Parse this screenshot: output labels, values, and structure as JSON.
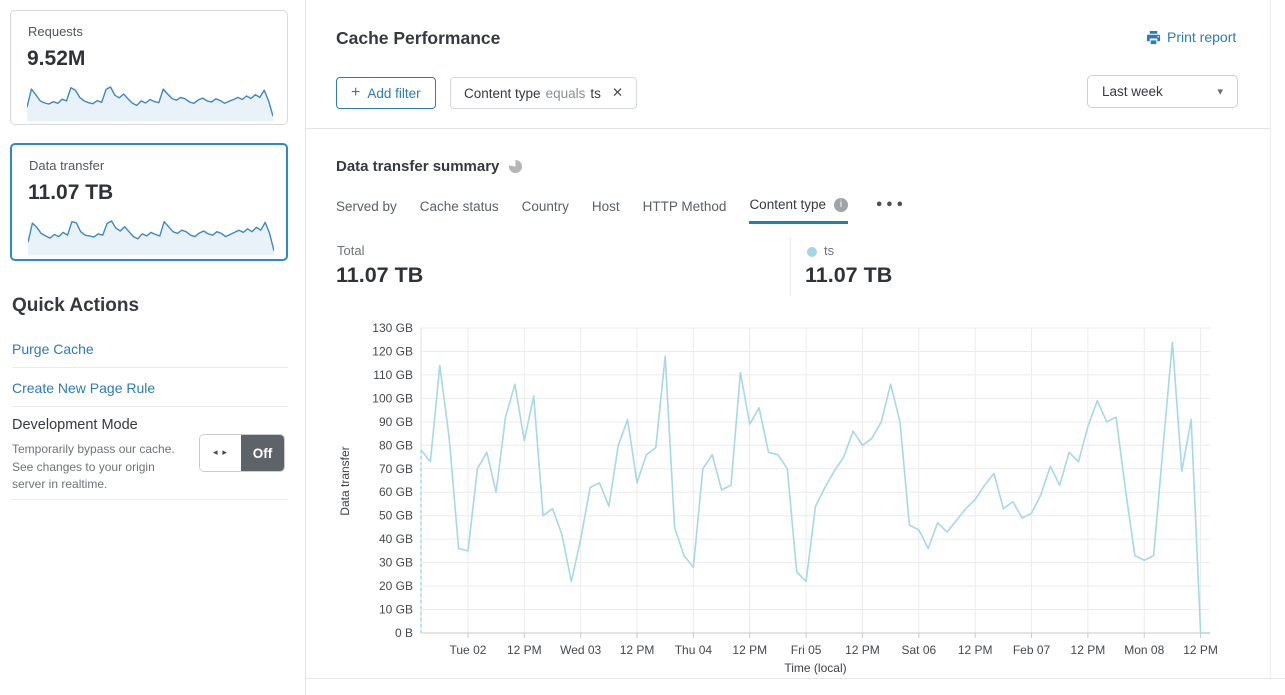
{
  "icons": {
    "plus": "+",
    "close": "✕",
    "caret": "▾",
    "more": "•••",
    "info": "i",
    "dev_arrows": "◂ ▸"
  },
  "sidebar": {
    "cards": [
      {
        "label": "Requests",
        "value": "9.52M",
        "selected": false,
        "spark": [
          34,
          86,
          70,
          52,
          46,
          43,
          50,
          45,
          57,
          52,
          90,
          83,
          62,
          52,
          47,
          44,
          53,
          48,
          85,
          92,
          68,
          61,
          72,
          58,
          45,
          39,
          52,
          46,
          56,
          50,
          47,
          86,
          72,
          59,
          54,
          62,
          58,
          49,
          45,
          55,
          60,
          52,
          49,
          58,
          53,
          45,
          51,
          56,
          62,
          56,
          66,
          59,
          70,
          62,
          83,
          52,
          8
        ]
      },
      {
        "label": "Data transfer",
        "value": "11.07 TB",
        "selected": true,
        "spark": [
          30,
          84,
          72,
          55,
          48,
          42,
          52,
          46,
          58,
          50,
          88,
          85,
          60,
          50,
          48,
          45,
          54,
          50,
          83,
          90,
          70,
          62,
          74,
          60,
          46,
          40,
          54,
          48,
          58,
          52,
          48,
          88,
          74,
          60,
          55,
          64,
          60,
          50,
          46,
          56,
          62,
          54,
          50,
          60,
          55,
          46,
          52,
          58,
          64,
          58,
          68,
          60,
          72,
          64,
          86,
          55,
          6
        ]
      }
    ],
    "spark_stroke": "#3d89c4",
    "spark_fill": "#e9f2f9",
    "quick_actions": {
      "title": "Quick Actions",
      "links": [
        "Purge Cache",
        "Create New Page Rule"
      ],
      "dev_mode": {
        "title": "Development Mode",
        "description": "Temporarily bypass our cache. See changes to your origin server in realtime.",
        "state": "Off"
      }
    }
  },
  "header": {
    "title": "Cache Performance",
    "print_label": "Print report",
    "add_filter_label": "Add filter",
    "filter_chip": {
      "field": "Content type",
      "operator": "equals",
      "value": "ts"
    },
    "time_range": "Last week"
  },
  "summary": {
    "title": "Data transfer summary",
    "tabs": [
      {
        "label": "Served by",
        "active": false
      },
      {
        "label": "Cache status",
        "active": false
      },
      {
        "label": "Country",
        "active": false
      },
      {
        "label": "Host",
        "active": false
      },
      {
        "label": "HTTP Method",
        "active": false
      },
      {
        "label": "Content type",
        "active": true
      }
    ],
    "total_label": "Total",
    "total_value": "11.07 TB",
    "legend": {
      "name": "ts",
      "value": "11.07 TB",
      "color": "#a3d5e4"
    }
  },
  "chart_data": {
    "type": "line",
    "title": "Data transfer summary",
    "ylabel": "Data transfer",
    "xlabel": "Time (local)",
    "unit": "GB",
    "ylim": [
      0,
      130
    ],
    "grid": true,
    "y_ticks": [
      "0 B",
      "10 GB",
      "20 GB",
      "30 GB",
      "40 GB",
      "50 GB",
      "60 GB",
      "70 GB",
      "80 GB",
      "90 GB",
      "100 GB",
      "110 GB",
      "120 GB",
      "130 GB"
    ],
    "x_ticks": [
      "Tue 02",
      "12 PM",
      "Wed 03",
      "12 PM",
      "Thu 04",
      "12 PM",
      "Fri 05",
      "12 PM",
      "Sat 06",
      "12 PM",
      "Feb 07",
      "12 PM",
      "Mon 08",
      "12 PM"
    ],
    "tick_start_index": 5,
    "tick_step": 6,
    "leading_dashed": true,
    "series": [
      {
        "name": "ts",
        "color": "#a6d8e7",
        "values": [
          78,
          73,
          114,
          83,
          36,
          35,
          70,
          77,
          60,
          92,
          106,
          82,
          101,
          50,
          53,
          42,
          22,
          40,
          62,
          64,
          54,
          80,
          91,
          64,
          76,
          79,
          118,
          45,
          33,
          28,
          70,
          76,
          61,
          63,
          111,
          89,
          96,
          77,
          76,
          70,
          26,
          22,
          54,
          62,
          69,
          75,
          86,
          80,
          83,
          90,
          106,
          90,
          46,
          44,
          36,
          47,
          43,
          48,
          53,
          57,
          63,
          68,
          53,
          56,
          49,
          51,
          59,
          71,
          63,
          77,
          73,
          88,
          99,
          90,
          92,
          61,
          33,
          31,
          33,
          79,
          124,
          69,
          91,
          0,
          0
        ]
      }
    ]
  }
}
